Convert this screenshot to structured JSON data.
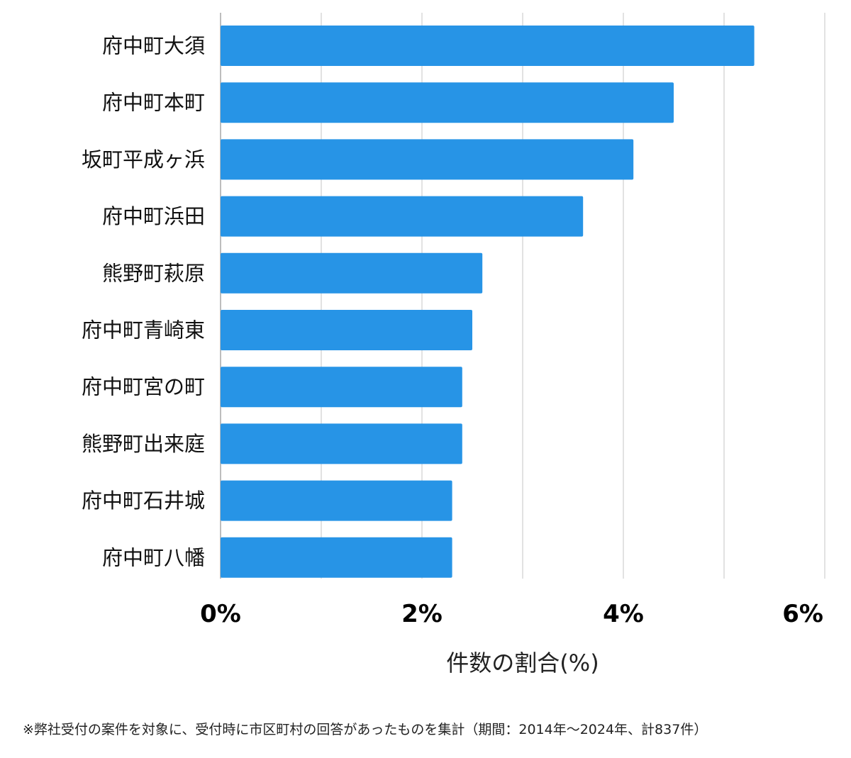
{
  "chart_data": {
    "type": "bar",
    "orientation": "horizontal",
    "categories": [
      "府中町大須",
      "府中町本町",
      "坂町平成ヶ浜",
      "府中町浜田",
      "熊野町萩原",
      "府中町青崎東",
      "府中町宮の町",
      "熊野町出来庭",
      "府中町石井城",
      "府中町八幡"
    ],
    "values": [
      5.3,
      4.5,
      4.1,
      3.6,
      2.6,
      2.5,
      2.4,
      2.4,
      2.3,
      2.3
    ],
    "xlim": [
      0,
      6
    ],
    "x_ticks": [
      0,
      2,
      4,
      6
    ],
    "x_tick_labels": [
      "0%",
      "2%",
      "4%",
      "6%"
    ],
    "grid_step": 1,
    "xlabel": "件数の割合(%)",
    "bar_color": "#2794e6",
    "grid": true
  },
  "footnote": "※弊社受付の案件を対象に、受付時に市区町村の回答があったものを集計（期間：2014年〜2024年、計837件）"
}
